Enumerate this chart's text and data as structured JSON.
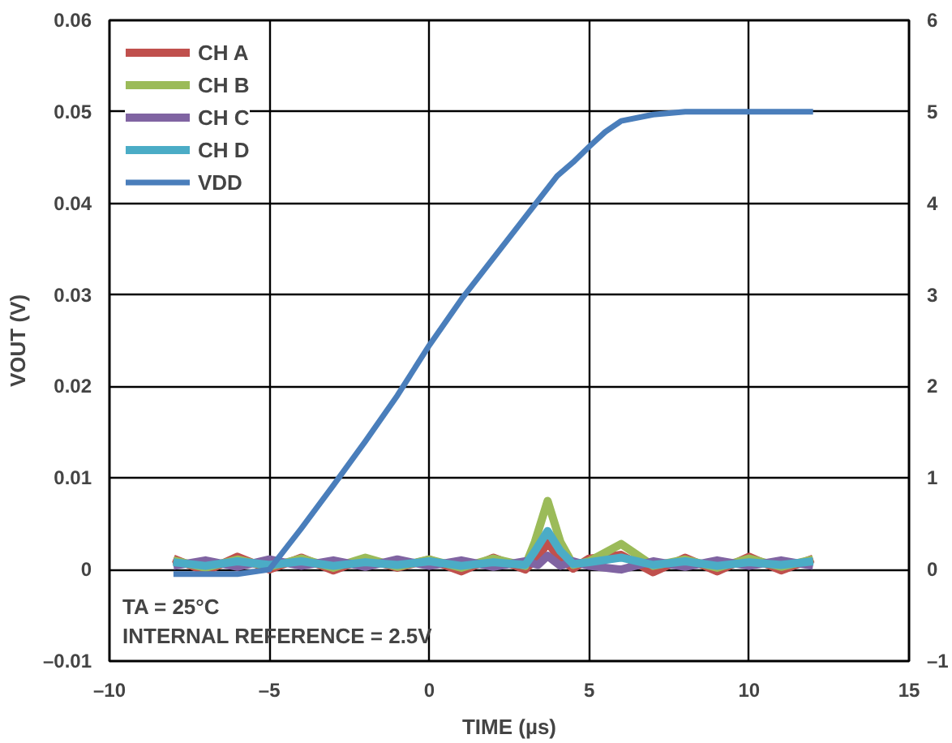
{
  "chart_data": {
    "type": "line",
    "xlabel": "TIME (µs)",
    "ylabel": "VOUT (V)",
    "xlim": [
      -10,
      15
    ],
    "xticks": [
      {
        "value": -10,
        "label": "–10"
      },
      {
        "value": -5,
        "label": "–5"
      },
      0,
      5,
      10,
      15
    ],
    "ylim": [
      -0.01,
      0.06
    ],
    "yticks": [
      {
        "value": -0.01,
        "label": "–0.01"
      },
      0,
      0.01,
      0.02,
      0.03,
      0.04,
      0.05,
      0.06
    ],
    "y2lim": [
      -1,
      6
    ],
    "y2ticks": [
      {
        "value": -1,
        "label": "–1"
      },
      0,
      1,
      2,
      3,
      4,
      5,
      6
    ],
    "grid": true,
    "legend": "top left",
    "annotations": [
      "TA = 25°C",
      "INTERNAL REFERENCE = 2.5V"
    ],
    "series": [
      {
        "name": "CH A",
        "color": "#c0504d",
        "x": [
          -8,
          -7,
          -6,
          -5,
          -4,
          -3,
          -2,
          -1,
          0,
          1,
          2,
          3,
          3.5,
          3.7,
          4,
          4.5,
          5,
          6,
          7,
          8,
          9,
          10,
          11,
          12
        ],
        "values": [
          0.0012,
          -0.0002,
          0.0014,
          0.0,
          0.0013,
          -0.0001,
          0.0012,
          0.0002,
          0.0011,
          -0.0002,
          0.0013,
          0.0,
          0.0018,
          0.003,
          0.0015,
          0.0001,
          0.0012,
          0.0016,
          -0.0003,
          0.0013,
          -0.0002,
          0.0014,
          -0.0001,
          0.0012
        ]
      },
      {
        "name": "CH B",
        "color": "#9bbb59",
        "x": [
          -8,
          -7,
          -6,
          -5,
          -4,
          -3,
          -2,
          -1,
          0,
          1,
          2,
          3,
          3.3,
          3.7,
          4.1,
          4.5,
          5,
          6,
          7,
          8,
          9,
          10,
          11,
          12
        ],
        "values": [
          0.001,
          0.0002,
          0.0011,
          0.0003,
          0.0012,
          0.0002,
          0.0013,
          0.0003,
          0.0011,
          0.0002,
          0.0012,
          0.0004,
          0.003,
          0.0075,
          0.003,
          0.0005,
          0.0009,
          0.0028,
          0.0004,
          0.0011,
          0.0002,
          0.0012,
          0.0003,
          0.0011
        ]
      },
      {
        "name": "CH C",
        "color": "#8064a2",
        "x": [
          -8,
          -7,
          -6,
          -5,
          -4,
          -3,
          -2,
          -1,
          0,
          1,
          2,
          3,
          3.4,
          3.7,
          4.1,
          4.5,
          5,
          6,
          7,
          8,
          9,
          10,
          11,
          12
        ],
        "values": [
          0.0004,
          0.001,
          0.0003,
          0.0011,
          0.0004,
          0.001,
          0.0003,
          0.0011,
          0.0004,
          0.001,
          0.0003,
          0.0009,
          0.0005,
          0.0015,
          0.0004,
          0.0009,
          0.0004,
          0.0,
          0.0009,
          0.0003,
          0.001,
          0.0004,
          0.001,
          0.0004
        ]
      },
      {
        "name": "CH D",
        "color": "#4bacc6",
        "x": [
          -8,
          -7,
          -6,
          -5,
          -4,
          -3,
          -2,
          -1,
          0,
          1,
          2,
          3,
          3.3,
          3.7,
          4.1,
          4.5,
          5,
          6,
          7,
          8,
          9,
          10,
          11,
          12
        ],
        "values": [
          0.0008,
          0.0004,
          0.0009,
          0.0005,
          0.0009,
          0.0004,
          0.0008,
          0.0005,
          0.0009,
          0.0004,
          0.0008,
          0.0005,
          0.002,
          0.0042,
          0.002,
          0.0006,
          0.0008,
          0.0013,
          0.0005,
          0.0009,
          0.0004,
          0.0008,
          0.0005,
          0.0009
        ]
      },
      {
        "name": "VDD",
        "color": "#4a7ebb",
        "axis": "y2",
        "x": [
          -8,
          -6,
          -5,
          -4,
          -3,
          -2,
          -1,
          0,
          1,
          2,
          3,
          4,
          4.5,
          5,
          5.5,
          6,
          7,
          8,
          10,
          12
        ],
        "values": [
          -0.05,
          -0.05,
          0.0,
          0.45,
          0.92,
          1.4,
          1.9,
          2.45,
          2.95,
          3.4,
          3.85,
          4.3,
          4.45,
          4.62,
          4.78,
          4.9,
          4.97,
          5.0,
          5.0,
          5.0
        ]
      }
    ]
  }
}
